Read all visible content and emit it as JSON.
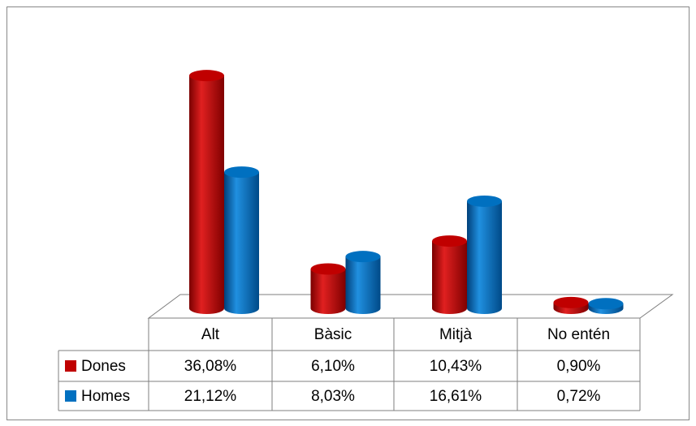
{
  "chart_data": {
    "type": "bar",
    "categories": [
      "Alt",
      "Bàsic",
      "Mitjà",
      "No entén"
    ],
    "series": [
      {
        "name": "Dones",
        "color": "#c00000",
        "values": [
          36.08,
          6.1,
          10.43,
          0.9
        ],
        "value_labels": [
          "36,08%",
          "6,10%",
          "10,43%",
          "0,90%"
        ]
      },
      {
        "name": "Homes",
        "color": "#0070c0",
        "values": [
          21.12,
          8.03,
          16.61,
          0.72
        ],
        "value_labels": [
          "21,12%",
          "8,03%",
          "16,61%",
          "0,72%"
        ]
      }
    ]
  }
}
